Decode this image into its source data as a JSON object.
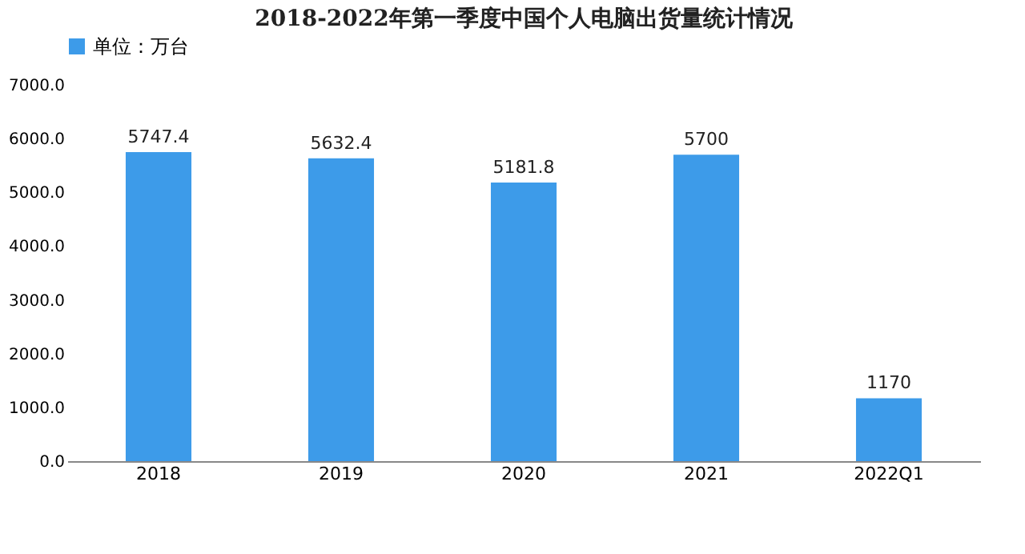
{
  "chart_data": {
    "type": "bar",
    "title": "2018-2022年第一季度中国个人电脑出货量统计情况",
    "categories": [
      "2018",
      "2019",
      "2020",
      "2021",
      "2022Q1"
    ],
    "series": [
      {
        "name": "单位：万台",
        "color": "#3d9be9",
        "values": [
          5747.4,
          5632.4,
          5181.8,
          5700,
          1170
        ]
      }
    ],
    "ylim": [
      0,
      7000
    ],
    "yticks": [
      {
        "value": 0,
        "label": "0.0"
      },
      {
        "value": 1000,
        "label": "1000.0"
      },
      {
        "value": 2000,
        "label": "2000.0"
      },
      {
        "value": 3000,
        "label": "3000.0"
      },
      {
        "value": 4000,
        "label": "4000.0"
      },
      {
        "value": 5000,
        "label": "5000.0"
      },
      {
        "value": 6000,
        "label": "6000.0"
      },
      {
        "value": 7000,
        "label": "7000.0"
      }
    ],
    "data_labels": true,
    "grid": false,
    "legend": "top"
  }
}
